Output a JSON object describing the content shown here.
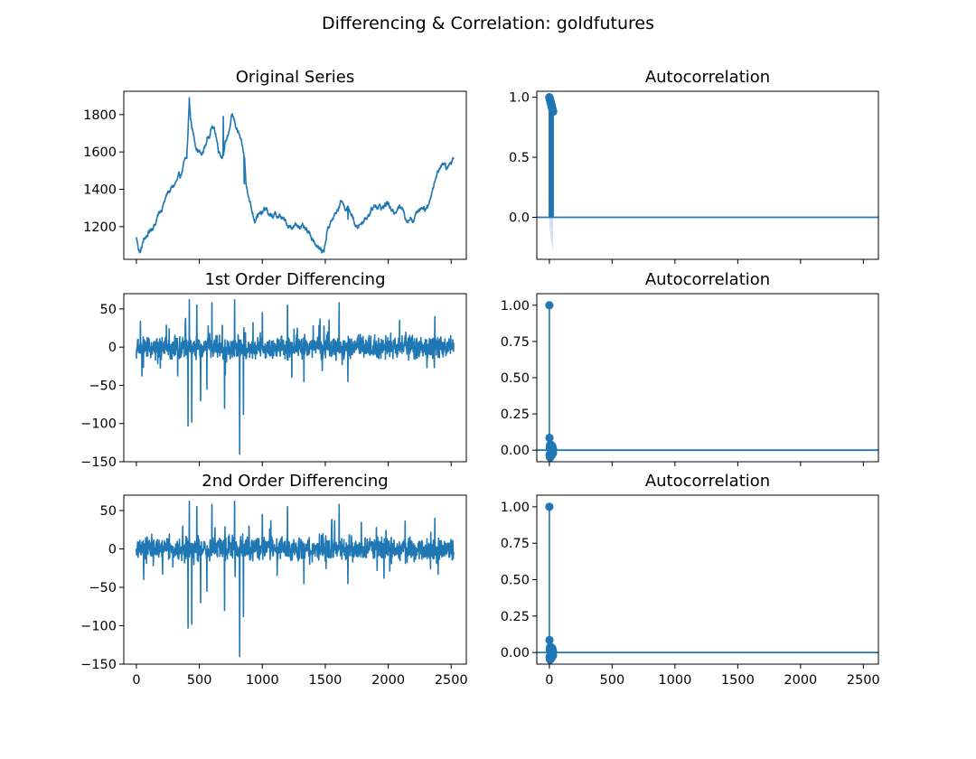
{
  "figure": {
    "title": "Differencing & Correlation: goldfutures",
    "line_color": "#1f77b4",
    "band_color": "#aec7e8"
  },
  "chart_data": [
    {
      "type": "line",
      "title": "Original Series",
      "xlim": [
        -100,
        2620
      ],
      "ylim": [
        1025,
        1925
      ],
      "xticks": [
        0,
        500,
        1000,
        1500,
        2000,
        2500
      ],
      "yticks": [
        1200,
        1400,
        1600,
        1800
      ],
      "show_xtick_labels": false,
      "anchors": [
        [
          0,
          1140
        ],
        [
          15,
          1090
        ],
        [
          30,
          1060
        ],
        [
          60,
          1130
        ],
        [
          100,
          1170
        ],
        [
          150,
          1220
        ],
        [
          200,
          1300
        ],
        [
          250,
          1380
        ],
        [
          300,
          1420
        ],
        [
          350,
          1470
        ],
        [
          380,
          1540
        ],
        [
          400,
          1560
        ],
        [
          410,
          1700
        ],
        [
          420,
          1880
        ],
        [
          430,
          1780
        ],
        [
          450,
          1700
        ],
        [
          480,
          1620
        ],
        [
          520,
          1580
        ],
        [
          560,
          1660
        ],
        [
          600,
          1740
        ],
        [
          630,
          1700
        ],
        [
          650,
          1620
        ],
        [
          680,
          1580
        ],
        [
          730,
          1700
        ],
        [
          760,
          1790
        ],
        [
          780,
          1760
        ],
        [
          820,
          1680
        ],
        [
          860,
          1560
        ],
        [
          870,
          1420
        ],
        [
          890,
          1380
        ],
        [
          900,
          1340
        ],
        [
          920,
          1280
        ],
        [
          940,
          1240
        ],
        [
          960,
          1270
        ],
        [
          990,
          1260
        ],
        [
          1030,
          1300
        ],
        [
          1060,
          1250
        ],
        [
          1100,
          1260
        ],
        [
          1150,
          1250
        ],
        [
          1200,
          1210
        ],
        [
          1250,
          1200
        ],
        [
          1300,
          1210
        ],
        [
          1350,
          1170
        ],
        [
          1400,
          1140
        ],
        [
          1450,
          1080
        ],
        [
          1490,
          1070
        ],
        [
          1520,
          1200
        ],
        [
          1560,
          1240
        ],
        [
          1600,
          1290
        ],
        [
          1630,
          1350
        ],
        [
          1650,
          1310
        ],
        [
          1700,
          1280
        ],
        [
          1750,
          1190
        ],
        [
          1780,
          1220
        ],
        [
          1820,
          1250
        ],
        [
          1860,
          1280
        ],
        [
          1900,
          1320
        ],
        [
          1950,
          1300
        ],
        [
          2000,
          1330
        ],
        [
          2030,
          1270
        ],
        [
          2050,
          1280
        ],
        [
          2080,
          1320
        ],
        [
          2110,
          1290
        ],
        [
          2150,
          1240
        ],
        [
          2180,
          1250
        ],
        [
          2200,
          1240
        ],
        [
          2250,
          1300
        ],
        [
          2270,
          1310
        ],
        [
          2300,
          1300
        ],
        [
          2330,
          1340
        ],
        [
          2350,
          1400
        ],
        [
          2380,
          1470
        ],
        [
          2400,
          1500
        ],
        [
          2430,
          1550
        ],
        [
          2460,
          1510
        ],
        [
          2490,
          1530
        ],
        [
          2510,
          1560
        ],
        [
          2520,
          1570
        ]
      ],
      "spikes": [
        [
          420,
          1890
        ],
        [
          690,
          1790
        ],
        [
          760,
          1800
        ],
        [
          855,
          1430
        ],
        [
          1680,
          1240
        ]
      ],
      "noise_amp": 18
    },
    {
      "type": "acf",
      "title": "Autocorrelation",
      "xlim": [
        -100,
        2620
      ],
      "ylim": [
        -0.35,
        1.05
      ],
      "xticks": [
        0,
        500,
        1000,
        1500,
        2000,
        2500
      ],
      "yticks": [
        0.0,
        0.5,
        1.0
      ],
      "ytick_labels": [
        "0.0",
        "0.5",
        "1.0"
      ],
      "show_xtick_labels": false,
      "lags": 30,
      "acf_start": 1.0,
      "acf_end": 0.88,
      "conf_band_end": 0.28
    },
    {
      "type": "line",
      "title": "1st Order Differencing",
      "xlim": [
        -100,
        2620
      ],
      "ylim": [
        -150,
        70
      ],
      "xticks": [
        0,
        500,
        1000,
        1500,
        2000,
        2500
      ],
      "yticks": [
        -150,
        -100,
        -50,
        0,
        50
      ],
      "show_xtick_labels": false,
      "noise_amp": 14,
      "spikes": [
        [
          410,
          -103
        ],
        [
          420,
          62
        ],
        [
          440,
          -98
        ],
        [
          480,
          55
        ],
        [
          510,
          -70
        ],
        [
          560,
          -55
        ],
        [
          600,
          58
        ],
        [
          700,
          -80
        ],
        [
          780,
          62
        ],
        [
          820,
          -140
        ],
        [
          850,
          -88
        ],
        [
          1000,
          45
        ],
        [
          1200,
          55
        ],
        [
          1330,
          -45
        ],
        [
          1610,
          58
        ],
        [
          1680,
          -45
        ],
        [
          2370,
          40
        ]
      ]
    },
    {
      "type": "acf",
      "title": "Autocorrelation",
      "xlim": [
        -100,
        2620
      ],
      "ylim": [
        -0.08,
        1.08
      ],
      "xticks": [
        0,
        500,
        1000,
        1500,
        2000,
        2500
      ],
      "yticks": [
        0.0,
        0.25,
        0.5,
        0.75,
        1.0
      ],
      "ytick_labels": [
        "0.00",
        "0.25",
        "0.50",
        "0.75",
        "1.00"
      ],
      "show_xtick_labels": false,
      "lags": 30,
      "acf_values": [
        1.0,
        0.085,
        -0.03,
        0.02,
        -0.04,
        0.03,
        -0.05,
        0.01,
        0.04,
        -0.02,
        0.03,
        -0.045,
        0.015,
        -0.01,
        0.035,
        -0.03,
        0.02,
        -0.015,
        0.01,
        -0.035,
        0.025,
        -0.02,
        0.03,
        -0.01,
        0.015,
        -0.025,
        0.02,
        -0.015,
        0.01,
        -0.02,
        0.005
      ],
      "conf_band": 0.04
    },
    {
      "type": "line",
      "title": "2nd Order Differencing",
      "xlim": [
        -100,
        2620
      ],
      "ylim": [
        -150,
        70
      ],
      "xticks": [
        0,
        500,
        1000,
        1500,
        2000,
        2500
      ],
      "yticks": [
        -150,
        -100,
        -50,
        0,
        50
      ],
      "xtick_labels": [
        "0",
        "500",
        "1000",
        "1500",
        "2000",
        "2500"
      ],
      "show_xtick_labels": true,
      "noise_amp": 14,
      "spikes": [
        [
          410,
          -103
        ],
        [
          420,
          62
        ],
        [
          440,
          -98
        ],
        [
          480,
          55
        ],
        [
          510,
          -70
        ],
        [
          560,
          -55
        ],
        [
          600,
          58
        ],
        [
          700,
          -80
        ],
        [
          780,
          62
        ],
        [
          820,
          -140
        ],
        [
          850,
          -88
        ],
        [
          1000,
          45
        ],
        [
          1200,
          55
        ],
        [
          1330,
          -45
        ],
        [
          1610,
          58
        ],
        [
          1680,
          -45
        ],
        [
          2370,
          40
        ]
      ]
    },
    {
      "type": "acf",
      "title": "Autocorrelation",
      "xlim": [
        -100,
        2620
      ],
      "ylim": [
        -0.08,
        1.08
      ],
      "xticks": [
        0,
        500,
        1000,
        1500,
        2000,
        2500
      ],
      "yticks": [
        0.0,
        0.25,
        0.5,
        0.75,
        1.0
      ],
      "ytick_labels": [
        "0.00",
        "0.25",
        "0.50",
        "0.75",
        "1.00"
      ],
      "xtick_labels": [
        "0",
        "500",
        "1000",
        "1500",
        "2000",
        "2500"
      ],
      "show_xtick_labels": true,
      "lags": 30,
      "acf_values": [
        1.0,
        0.085,
        -0.03,
        0.02,
        -0.04,
        0.03,
        -0.05,
        0.01,
        0.04,
        -0.02,
        0.03,
        -0.045,
        0.015,
        -0.01,
        0.035,
        -0.03,
        0.02,
        -0.015,
        0.01,
        -0.035,
        0.025,
        -0.02,
        0.03,
        -0.01,
        0.015,
        -0.025,
        0.02,
        -0.015,
        0.01,
        -0.02,
        0.005
      ],
      "conf_band": 0.04
    }
  ]
}
